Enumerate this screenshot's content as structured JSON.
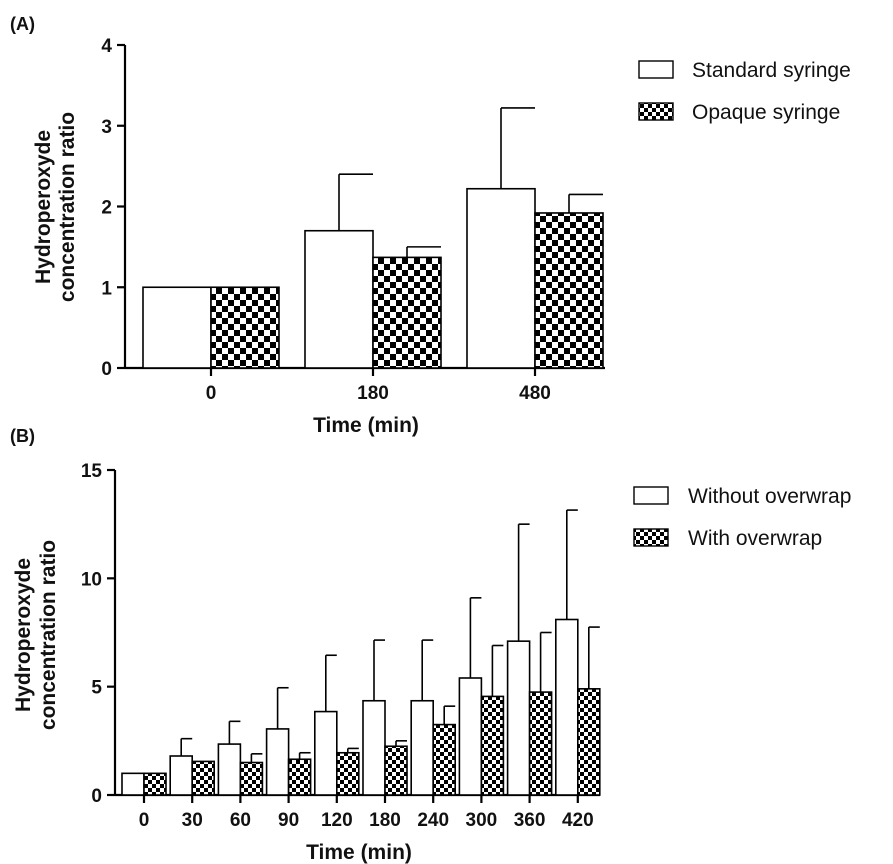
{
  "chart_data": [
    {
      "type": "bar",
      "panel_label": "(A)",
      "title": "",
      "xlabel": "Time (min)",
      "ylabel": [
        "Hydroperoxyde",
        "concentration ratio"
      ],
      "ylim": [
        0,
        4
      ],
      "yticks": [
        "0",
        "1",
        "2",
        "3",
        "4"
      ],
      "categories": [
        "0",
        "180",
        "480"
      ],
      "legend_position": "top-right",
      "series": [
        {
          "name": "Standard syringe",
          "fill": "white",
          "values": [
            1.0,
            1.7,
            2.22
          ],
          "err": [
            0.0,
            0.7,
            1.0
          ]
        },
        {
          "name": "Opaque syringe",
          "fill": "checkered",
          "values": [
            1.0,
            1.37,
            1.92
          ],
          "err": [
            0.0,
            0.13,
            0.23
          ]
        }
      ]
    },
    {
      "type": "bar",
      "panel_label": "(B)",
      "title": "",
      "xlabel": "Time (min)",
      "ylabel": [
        "Hydroperoxyde",
        "concentration ratio"
      ],
      "ylim": [
        0,
        15
      ],
      "yticks": [
        "0",
        "5",
        "10",
        "15"
      ],
      "categories": [
        "0",
        "30",
        "60",
        "90",
        "120",
        "180",
        "240",
        "300",
        "360",
        "420"
      ],
      "legend_position": "top-right",
      "series": [
        {
          "name": "Without overwrap",
          "fill": "white",
          "values": [
            1.0,
            1.8,
            2.35,
            3.05,
            3.85,
            4.35,
            4.35,
            5.4,
            7.1,
            8.1
          ],
          "err": [
            0.0,
            0.8,
            1.05,
            1.9,
            2.6,
            2.8,
            2.8,
            3.7,
            5.4,
            5.05
          ]
        },
        {
          "name": "With overwrap",
          "fill": "checkered",
          "values": [
            1.0,
            1.55,
            1.5,
            1.65,
            1.95,
            2.25,
            3.25,
            4.55,
            4.75,
            4.9
          ],
          "err": [
            0.0,
            0.0,
            0.4,
            0.3,
            0.2,
            0.25,
            0.85,
            2.35,
            2.75,
            2.85
          ]
        }
      ]
    }
  ]
}
